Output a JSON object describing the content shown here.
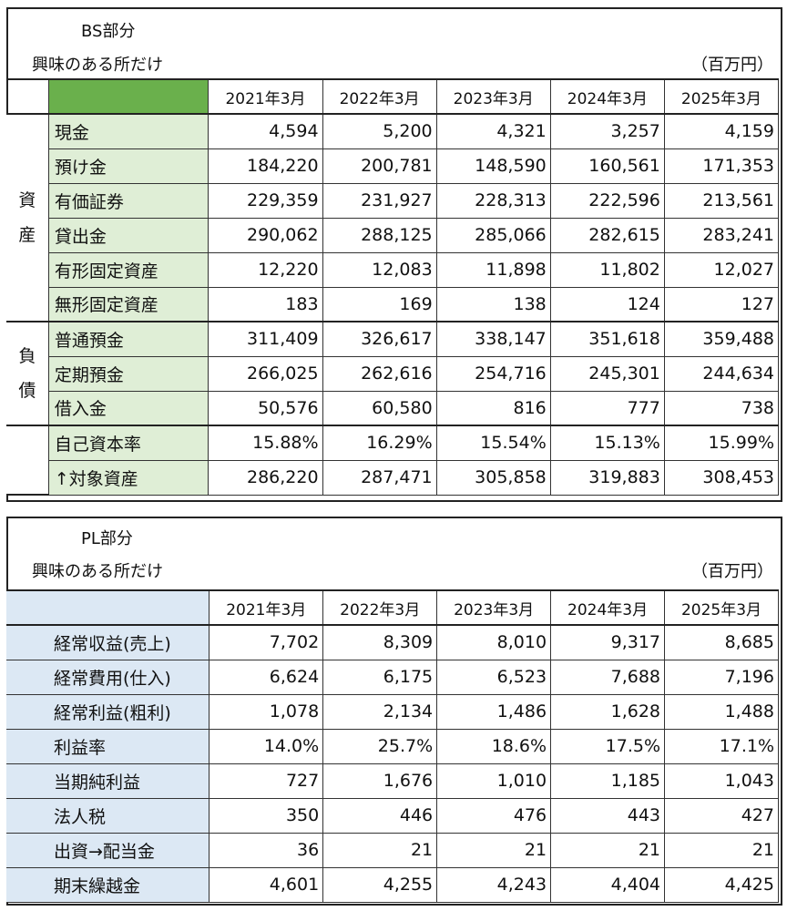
{
  "bs": {
    "title": "BS部分",
    "subtitle": "興味のある所だけ",
    "unit": "（百万円）",
    "years": [
      "2021年3月",
      "2022年3月",
      "2023年3月",
      "2024年3月",
      "2025年3月"
    ],
    "groups": {
      "assets": [
        "資",
        "産"
      ],
      "liabilities": [
        "負",
        "債"
      ]
    },
    "rows": [
      {
        "label": "現金",
        "values": [
          "4,594",
          "5,200",
          "4,321",
          "3,257",
          "4,159"
        ]
      },
      {
        "label": "預け金",
        "values": [
          "184,220",
          "200,781",
          "148,590",
          "160,561",
          "171,353"
        ]
      },
      {
        "label": "有価証券",
        "values": [
          "229,359",
          "231,927",
          "228,313",
          "222,596",
          "213,561"
        ]
      },
      {
        "label": "貸出金",
        "values": [
          "290,062",
          "288,125",
          "285,066",
          "282,615",
          "283,241"
        ]
      },
      {
        "label": "有形固定資産",
        "values": [
          "12,220",
          "12,083",
          "11,898",
          "11,802",
          "12,027"
        ]
      },
      {
        "label": "無形固定資産",
        "values": [
          "183",
          "169",
          "138",
          "124",
          "127"
        ]
      },
      {
        "label": "普通預金",
        "values": [
          "311,409",
          "326,617",
          "338,147",
          "351,618",
          "359,488"
        ]
      },
      {
        "label": "定期預金",
        "values": [
          "266,025",
          "262,616",
          "254,716",
          "245,301",
          "244,634"
        ]
      },
      {
        "label": "借入金",
        "values": [
          "50,576",
          "60,580",
          "816",
          "777",
          "738"
        ]
      },
      {
        "label": "自己資本率",
        "values": [
          "15.88%",
          "16.29%",
          "15.54%",
          "15.13%",
          "15.99%"
        ]
      },
      {
        "label": "↑対象資産",
        "values": [
          "286,220",
          "287,471",
          "305,858",
          "319,883",
          "308,453"
        ]
      }
    ]
  },
  "pl": {
    "title": "PL部分",
    "subtitle": "興味のある所だけ",
    "unit": "（百万円）",
    "years": [
      "2021年3月",
      "2022年3月",
      "2023年3月",
      "2024年3月",
      "2025年3月"
    ],
    "rows": [
      {
        "label": "経常収益(売上)",
        "values": [
          "7,702",
          "8,309",
          "8,010",
          "9,317",
          "8,685"
        ]
      },
      {
        "label": "経常費用(仕入)",
        "values": [
          "6,624",
          "6,175",
          "6,523",
          "7,688",
          "7,196"
        ]
      },
      {
        "label": "経常利益(粗利)",
        "values": [
          "1,078",
          "2,134",
          "1,486",
          "1,628",
          "1,488"
        ]
      },
      {
        "label": "利益率",
        "values": [
          "14.0%",
          "25.7%",
          "18.6%",
          "17.5%",
          "17.1%"
        ]
      },
      {
        "label": "当期純利益",
        "values": [
          "727",
          "1,676",
          "1,010",
          "1,185",
          "1,043"
        ]
      },
      {
        "label": "法人税",
        "values": [
          "350",
          "446",
          "476",
          "443",
          "427"
        ]
      },
      {
        "label": "出資→配当金",
        "values": [
          "36",
          "21",
          "21",
          "21",
          "21"
        ]
      },
      {
        "label": "期末繰越金",
        "values": [
          "4,601",
          "4,255",
          "4,243",
          "4,404",
          "4,425"
        ]
      }
    ]
  }
}
